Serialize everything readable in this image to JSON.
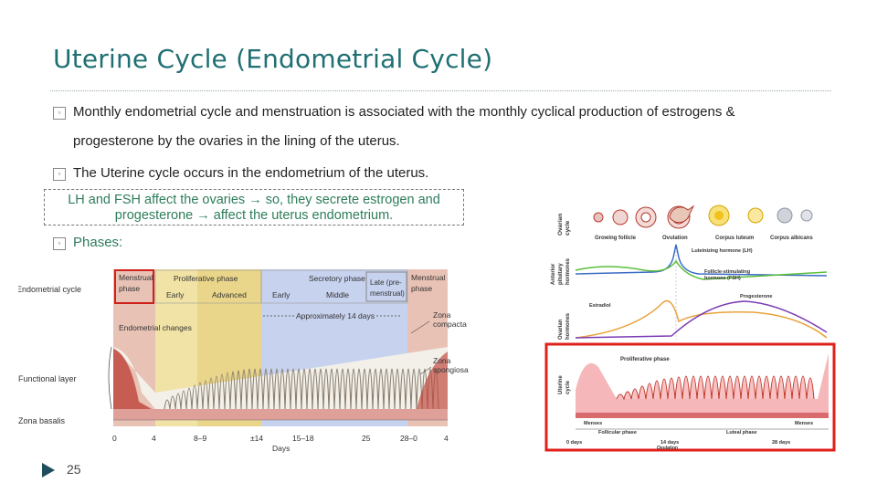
{
  "slide": {
    "title": "Uterine Cycle (Endometrial Cycle)",
    "bullet1_line1": "Monthly endometrial cycle and menstruation is associated with the monthly cyclical production of estrogens &",
    "bullet1_line2": "progesterone by the ovaries in the lining of the uterus.",
    "bullet2": "The Uterine cycle occurs in the endometrium of the uterus.",
    "note_line1": "LH and FSH affect the ovaries → so, they secrete estrogen and",
    "note_line2": "progesterone → affect the uterus endometrium.",
    "bullet3": "Phases:",
    "page_number": "25"
  },
  "left_diagram": {
    "row_label_cycle": "Endometrial cycle",
    "menstrual": "Menstrual phase",
    "menstrual_l1": "Menstrual",
    "menstrual_l2": "phase",
    "proliferative": "Proliferative phase",
    "early": "Early",
    "advanced": "Advanced",
    "secretory": "Secretory phase",
    "middle": "Middle",
    "late_l1": "Late (pre-",
    "late_l2": "menstrual)",
    "approx": "Approximately 14 days",
    "endometrial_changes": "Endometrial changes",
    "zona_compacta_l1": "Zona",
    "zona_compacta_l2": "compacta",
    "zona_spongiosa_l1": "Zona",
    "zona_spongiosa_l2": "spongiosa",
    "functional_layer": "Functional layer",
    "zona_basalis": "Zona basalis",
    "days_label": "Days",
    "day_ticks": [
      "0",
      "4",
      "8–9",
      "±14",
      "15–18",
      "25",
      "28–0",
      "4"
    ]
  },
  "right_diagram": {
    "ovarian_cycle_l1": "Ovarian",
    "ovarian_cycle_l2": "cycle",
    "growing_follicle": "Growing follicle",
    "ovulation": "Ovulation",
    "corpus_luteum": "Corpus luteum",
    "corpus_albicans": "Corpus albicans",
    "anterior_l1": "Anterior",
    "anterior_l2": "pituitary",
    "anterior_l3": "hormones",
    "lh_label": "Luteinizing hormone (LH)",
    "fsh_l1": "Follicle-stimulating",
    "fsh_l2": "hormone (FSH)",
    "ovarian_hormones_l1": "Ovarian",
    "ovarian_hormones_l2": "hormones",
    "estradiol": "Estradiol",
    "progesterone": "Progesterone",
    "uterine_cycle_l1": "Uterine",
    "uterine_cycle_l2": "cycle",
    "proliferative": "Proliferative phase",
    "menses_left": "Menses",
    "menses_right": "Menses",
    "follicular": "Follicular phase",
    "luteal": "Luteal phase",
    "day0": "0 days",
    "day14": "14 days",
    "ovulation_small": "Ovulation",
    "day28": "28 days"
  },
  "colors": {
    "title": "#1f6f73",
    "menstrual": "#e8c2b5",
    "proliferative": "#f1e3a6",
    "secretory": "#c7d2ee",
    "highlight": "#e0201b",
    "lh": "#3a6bc4",
    "fsh": "#5bbf3a",
    "estradiol": "#e8a23a",
    "progesterone": "#7a3bb5"
  }
}
